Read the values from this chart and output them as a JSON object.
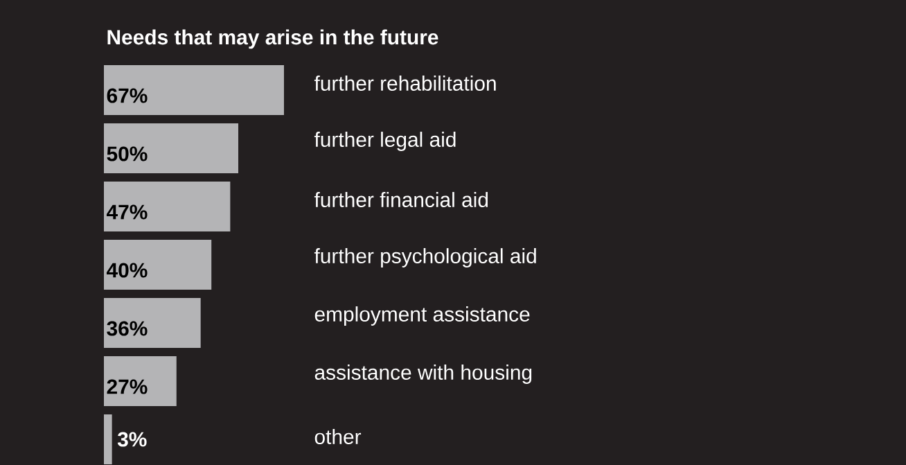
{
  "chart_data": {
    "type": "bar",
    "orientation": "horizontal",
    "title": "Needs that may arise in the future",
    "categories": [
      "further rehabilitation",
      "further legal aid",
      "further financial aid",
      "further psychological aid",
      "employment assistance",
      "assistance with housing",
      "other"
    ],
    "values": [
      67,
      50,
      47,
      40,
      36,
      27,
      3
    ],
    "value_labels": [
      "67%",
      "50%",
      "47%",
      "40%",
      "36%",
      "27%",
      "3%"
    ],
    "color": "#b4b4b6"
  }
}
